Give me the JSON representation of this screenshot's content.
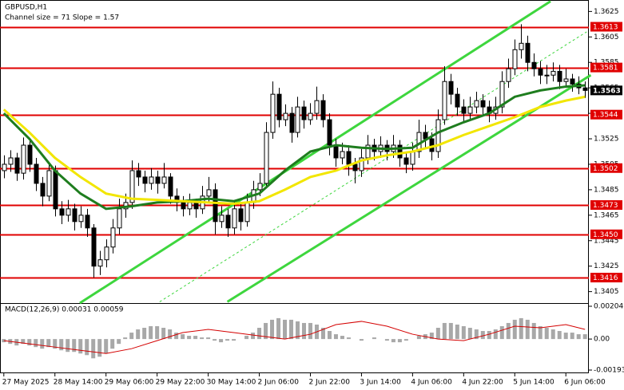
{
  "chart_data": {
    "type": "candlestick",
    "title": "GBPUSD,H1",
    "subtitle": "Channel size = 71 Slope = 1.57",
    "ylim": [
      1.3396,
      1.3634
    ],
    "yticks": [
      1.3625,
      1.3605,
      1.3585,
      1.3565,
      1.3545,
      1.3525,
      1.3505,
      1.3485,
      1.3465,
      1.3445,
      1.3425,
      1.3405
    ],
    "xlim": [
      -0.6,
      91.6
    ],
    "xticks": [
      {
        "value": 0,
        "label": "27 May 2025"
      },
      {
        "value": 8,
        "label": "28 May 14:00"
      },
      {
        "value": 16,
        "label": "29 May 06:00"
      },
      {
        "value": 24,
        "label": "29 May 22:00"
      },
      {
        "value": 32,
        "label": "30 May 14:00"
      },
      {
        "value": 40,
        "label": "2 Jun 06:00"
      },
      {
        "value": 48,
        "label": "2 Jun 22:00"
      },
      {
        "value": 56,
        "label": "3 Jun 14:00"
      },
      {
        "value": 64,
        "label": "4 Jun 06:00"
      },
      {
        "value": 72,
        "label": "4 Jun 22:00"
      },
      {
        "value": 80,
        "label": "5 Jun 14:00"
      },
      {
        "value": 88,
        "label": "6 Jun 06:00"
      }
    ],
    "up_color": "#ffffff",
    "down_color": "#000000",
    "ohlc": [
      [
        1.35,
        1.3512,
        1.3494,
        1.3505
      ],
      [
        1.3505,
        1.3516,
        1.3499,
        1.351
      ],
      [
        1.351,
        1.3514,
        1.3492,
        1.3498
      ],
      [
        1.3498,
        1.3526,
        1.3493,
        1.352
      ],
      [
        1.352,
        1.3524,
        1.3499,
        1.3505
      ],
      [
        1.3505,
        1.351,
        1.3484,
        1.349
      ],
      [
        1.349,
        1.3495,
        1.3472,
        1.348
      ],
      [
        1.348,
        1.3506,
        1.3476,
        1.35
      ],
      [
        1.35,
        1.3504,
        1.3464,
        1.347
      ],
      [
        1.347,
        1.3476,
        1.3458,
        1.3465
      ],
      [
        1.3465,
        1.3477,
        1.346,
        1.347
      ],
      [
        1.347,
        1.3474,
        1.3453,
        1.346
      ],
      [
        1.346,
        1.3472,
        1.3455,
        1.3465
      ],
      [
        1.3465,
        1.347,
        1.3448,
        1.3455
      ],
      [
        1.3455,
        1.3458,
        1.3416,
        1.3425
      ],
      [
        1.3425,
        1.3437,
        1.3418,
        1.343
      ],
      [
        1.343,
        1.3446,
        1.3424,
        1.344
      ],
      [
        1.344,
        1.3462,
        1.3435,
        1.3455
      ],
      [
        1.3455,
        1.3478,
        1.345,
        1.347
      ],
      [
        1.347,
        1.3482,
        1.3463,
        1.3475
      ],
      [
        1.3475,
        1.3508,
        1.347,
        1.35
      ],
      [
        1.35,
        1.3506,
        1.3488,
        1.3495
      ],
      [
        1.3495,
        1.35,
        1.3483,
        1.349
      ],
      [
        1.349,
        1.3502,
        1.3485,
        1.3495
      ],
      [
        1.3495,
        1.35,
        1.3482,
        1.349
      ],
      [
        1.349,
        1.3506,
        1.3486,
        1.3495
      ],
      [
        1.3495,
        1.3498,
        1.3474,
        1.348
      ],
      [
        1.348,
        1.3486,
        1.3468,
        1.3475
      ],
      [
        1.3475,
        1.348,
        1.3464,
        1.347
      ],
      [
        1.347,
        1.3482,
        1.3465,
        1.3475
      ],
      [
        1.3475,
        1.3478,
        1.3463,
        1.347
      ],
      [
        1.347,
        1.3488,
        1.3466,
        1.348
      ],
      [
        1.348,
        1.3495,
        1.3475,
        1.3485
      ],
      [
        1.3485,
        1.349,
        1.345,
        1.346
      ],
      [
        1.346,
        1.3472,
        1.3455,
        1.3465
      ],
      [
        1.3465,
        1.347,
        1.3448,
        1.3455
      ],
      [
        1.3455,
        1.3477,
        1.345,
        1.347
      ],
      [
        1.347,
        1.3474,
        1.3453,
        1.346
      ],
      [
        1.346,
        1.3482,
        1.3456,
        1.3475
      ],
      [
        1.3475,
        1.3492,
        1.347,
        1.3485
      ],
      [
        1.3485,
        1.3498,
        1.348,
        1.349
      ],
      [
        1.349,
        1.3538,
        1.3486,
        1.353
      ],
      [
        1.353,
        1.357,
        1.3525,
        1.356
      ],
      [
        1.356,
        1.3565,
        1.3534,
        1.354
      ],
      [
        1.354,
        1.3552,
        1.3535,
        1.3545
      ],
      [
        1.3545,
        1.355,
        1.3522,
        1.353
      ],
      [
        1.353,
        1.3558,
        1.3526,
        1.355
      ],
      [
        1.355,
        1.3555,
        1.3533,
        1.354
      ],
      [
        1.354,
        1.3553,
        1.3536,
        1.3545
      ],
      [
        1.3545,
        1.3566,
        1.354,
        1.3555
      ],
      [
        1.3555,
        1.356,
        1.3534,
        1.354
      ],
      [
        1.354,
        1.3545,
        1.3512,
        1.352
      ],
      [
        1.352,
        1.3525,
        1.3503,
        1.351
      ],
      [
        1.351,
        1.3522,
        1.3505,
        1.3515
      ],
      [
        1.3515,
        1.352,
        1.3496,
        1.3505
      ],
      [
        1.3505,
        1.351,
        1.349,
        1.35
      ],
      [
        1.35,
        1.3517,
        1.3495,
        1.351
      ],
      [
        1.351,
        1.3528,
        1.3505,
        1.352
      ],
      [
        1.352,
        1.3525,
        1.3508,
        1.3515
      ],
      [
        1.3515,
        1.3527,
        1.351,
        1.352
      ],
      [
        1.352,
        1.3524,
        1.3508,
        1.3515
      ],
      [
        1.3515,
        1.3528,
        1.351,
        1.352
      ],
      [
        1.352,
        1.3524,
        1.3503,
        1.351
      ],
      [
        1.351,
        1.3514,
        1.3498,
        1.3505
      ],
      [
        1.3505,
        1.3522,
        1.35,
        1.3515
      ],
      [
        1.3515,
        1.354,
        1.351,
        1.353
      ],
      [
        1.353,
        1.3536,
        1.3518,
        1.3525
      ],
      [
        1.3525,
        1.353,
        1.3508,
        1.3515
      ],
      [
        1.3515,
        1.3548,
        1.351,
        1.354
      ],
      [
        1.354,
        1.3582,
        1.3536,
        1.357
      ],
      [
        1.357,
        1.3576,
        1.3552,
        1.356
      ],
      [
        1.356,
        1.3565,
        1.3543,
        1.355
      ],
      [
        1.355,
        1.3556,
        1.3538,
        1.3545
      ],
      [
        1.3545,
        1.3558,
        1.354,
        1.355
      ],
      [
        1.355,
        1.3562,
        1.3545,
        1.3555
      ],
      [
        1.3555,
        1.356,
        1.3543,
        1.355
      ],
      [
        1.355,
        1.3555,
        1.3538,
        1.3545
      ],
      [
        1.3545,
        1.3558,
        1.354,
        1.355
      ],
      [
        1.355,
        1.3578,
        1.3545,
        1.357
      ],
      [
        1.357,
        1.3588,
        1.3565,
        1.358
      ],
      [
        1.358,
        1.3603,
        1.3575,
        1.3595
      ],
      [
        1.3595,
        1.3615,
        1.3588,
        1.36
      ],
      [
        1.36,
        1.3606,
        1.3578,
        1.3585
      ],
      [
        1.3585,
        1.3592,
        1.3574,
        1.358
      ],
      [
        1.358,
        1.3586,
        1.3568,
        1.3575
      ],
      [
        1.3575,
        1.3583,
        1.3568,
        1.3575
      ],
      [
        1.3575,
        1.3585,
        1.357,
        1.3578
      ],
      [
        1.3578,
        1.3583,
        1.3564,
        1.357
      ],
      [
        1.357,
        1.358,
        1.3565,
        1.3572
      ],
      [
        1.3572,
        1.3576,
        1.3562,
        1.3568
      ],
      [
        1.3568,
        1.3574,
        1.356,
        1.3565
      ],
      [
        1.3565,
        1.357,
        1.3557,
        1.3563
      ]
    ],
    "lines": [
      {
        "x": [
          0,
          4,
          8,
          12,
          16,
          20,
          24,
          28,
          32,
          36,
          40,
          44,
          48,
          52,
          56,
          60,
          64,
          68,
          72,
          76,
          80,
          84,
          88,
          91
        ],
        "values": [
          1.3545,
          1.3525,
          1.35,
          1.3482,
          1.347,
          1.3472,
          1.3475,
          1.3476,
          1.3478,
          1.3476,
          1.3482,
          1.35,
          1.3515,
          1.352,
          1.3518,
          1.3517,
          1.3518,
          1.353,
          1.3538,
          1.3545,
          1.3558,
          1.3563,
          1.3566,
          1.3567
        ],
        "color": "#1e7d1e",
        "width": 3
      },
      {
        "x": [
          0,
          4,
          8,
          12,
          16,
          20,
          24,
          28,
          32,
          36,
          40,
          44,
          48,
          52,
          56,
          60,
          64,
          68,
          72,
          76,
          80,
          84,
          88,
          91
        ],
        "values": [
          1.3548,
          1.353,
          1.351,
          1.3495,
          1.3482,
          1.3478,
          1.3477,
          1.3476,
          1.3475,
          1.3474,
          1.3476,
          1.3485,
          1.3495,
          1.35,
          1.3508,
          1.3512,
          1.3515,
          1.352,
          1.3528,
          1.3535,
          1.3542,
          1.355,
          1.3555,
          1.3558
        ],
        "color": "#f2e600",
        "width": 3
      }
    ],
    "channel": [
      {
        "x": [
          11.9,
          85.6
        ],
        "values": [
          1.3396,
          1.3633
        ],
        "color": "#3ed63e",
        "dashed": false
      },
      {
        "x": [
          35,
          91.9
        ],
        "values": [
          1.3397,
          1.3575
        ],
        "color": "#3ed63e",
        "dashed": false
      },
      {
        "x": [
          24.4,
          91.25
        ],
        "values": [
          1.3397,
          1.3609
        ],
        "color": "#3ed63e",
        "dashed": true
      }
    ],
    "levels": {
      "values": [
        1.3613,
        1.3581,
        1.3544,
        1.3502,
        1.3473,
        {
          "value": 1.345,
          "label": "1.3450"
        },
        1.3416
      ],
      "color": "#e00000"
    },
    "last_price": 1.3563,
    "macd": {
      "label": "MACD(12,26,9) 0.00031 0.00059",
      "ylim": [
        -0.00193,
        0.00204
      ],
      "yticks": [
        0.00204,
        {
          "value": 0,
          "label": "0.00"
        },
        -0.00193
      ],
      "hist_color": "#a8a8a8",
      "histogram": [
        -0.0002,
        -0.0003,
        -0.0004,
        -0.0003,
        -0.0004,
        -0.0005,
        -0.0006,
        -0.0005,
        -0.0006,
        -0.0007,
        -0.0008,
        -0.0008,
        -0.0009,
        -0.001,
        -0.0012,
        -0.0011,
        -0.0009,
        -0.0006,
        -0.0003,
        0.0001,
        0.0004,
        0.0006,
        0.0007,
        0.0008,
        0.0008,
        0.0007,
        0.0006,
        0.0004,
        0.0003,
        0.0002,
        0.0002,
        0.0001,
        0.0001,
        -0.0001,
        -0.0002,
        -0.0001,
        -0.0001,
        0.0,
        0.0002,
        0.0004,
        0.0007,
        0.001,
        0.0012,
        0.0013,
        0.0012,
        0.0012,
        0.0011,
        0.001,
        0.001,
        0.0009,
        0.0007,
        0.0005,
        0.0003,
        0.0002,
        0.0001,
        0.0,
        -0.0001,
        0.0,
        0.0001,
        0.0,
        -0.0001,
        -0.0002,
        -0.0002,
        -0.0001,
        0.0,
        0.0002,
        0.0003,
        0.0004,
        0.0007,
        0.001,
        0.001,
        0.0009,
        0.0008,
        0.0007,
        0.0006,
        0.0005,
        0.0005,
        0.0006,
        0.0008,
        0.001,
        0.0012,
        0.0013,
        0.0012,
        0.001,
        0.0008,
        0.0007,
        0.0006,
        0.0005,
        0.0004,
        0.0004,
        0.0003,
        0.0003
      ],
      "signal": {
        "x": [
          0,
          4,
          8,
          12,
          16,
          20,
          24,
          28,
          32,
          36,
          40,
          44,
          48,
          52,
          56,
          60,
          64,
          68,
          72,
          76,
          80,
          84,
          88,
          91
        ],
        "values": [
          -0.0001,
          -0.0003,
          -0.0005,
          -0.0007,
          -0.0009,
          -0.0006,
          -0.0001,
          0.0004,
          0.0006,
          0.0004,
          0.0002,
          0.0,
          0.0003,
          0.0009,
          0.0011,
          0.0008,
          0.0003,
          0.0,
          -0.0001,
          0.0003,
          0.0008,
          0.0007,
          0.0009,
          0.0006
        ],
        "color": "#d40000"
      }
    }
  }
}
